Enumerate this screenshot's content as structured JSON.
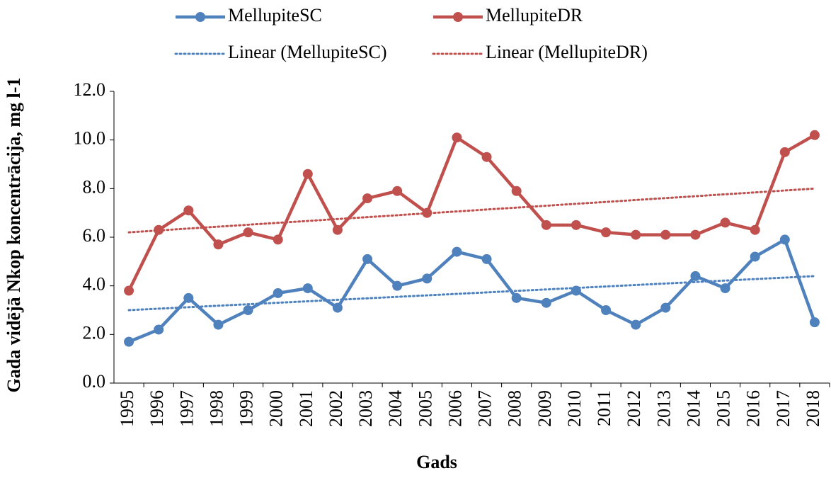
{
  "chart_data": {
    "type": "line",
    "x_label": "Gads",
    "y_label": "Gada vidējā Nkop koncentrācija, mg l-1",
    "categories": [
      "1995",
      "1996",
      "1997",
      "1998",
      "1999",
      "2000",
      "2001",
      "2002",
      "2003",
      "2004",
      "2005",
      "2006",
      "2007",
      "2008",
      "2009",
      "2010",
      "2011",
      "2012",
      "2013",
      "2014",
      "2015",
      "2016",
      "2017",
      "2018"
    ],
    "series": [
      {
        "name": "MellupiteSC",
        "color": "#4f81bd",
        "values": [
          1.7,
          2.2,
          3.5,
          2.4,
          3.0,
          3.7,
          3.9,
          3.1,
          5.1,
          4.0,
          4.3,
          5.4,
          5.1,
          3.5,
          3.3,
          3.8,
          3.0,
          2.4,
          3.1,
          4.4,
          3.9,
          5.2,
          5.9,
          2.5
        ]
      },
      {
        "name": "MellupiteDR",
        "color": "#c0504d",
        "values": [
          3.8,
          6.3,
          7.1,
          5.7,
          6.2,
          5.9,
          8.6,
          6.3,
          7.6,
          7.9,
          7.0,
          10.1,
          9.3,
          7.9,
          6.5,
          6.5,
          6.2,
          6.1,
          6.1,
          6.1,
          6.6,
          6.3,
          9.5,
          10.2
        ]
      }
    ],
    "trendlines": [
      {
        "name": "Linear (MellupiteSC)",
        "color": "#4f81bd",
        "start": 3.0,
        "end": 4.4
      },
      {
        "name": "Linear (MellupiteDR)",
        "color": "#c0504d",
        "start": 6.2,
        "end": 8.0
      }
    ],
    "ylim": [
      0,
      12
    ],
    "yticks": [
      {
        "value": 0,
        "label": "0.0"
      },
      {
        "value": 2,
        "label": "2.0"
      },
      {
        "value": 4,
        "label": "4.0"
      },
      {
        "value": 6,
        "label": "6.0"
      },
      {
        "value": 8,
        "label": "8.0"
      },
      {
        "value": 10,
        "label": "10.0"
      },
      {
        "value": 12,
        "label": "12.0"
      }
    ]
  }
}
